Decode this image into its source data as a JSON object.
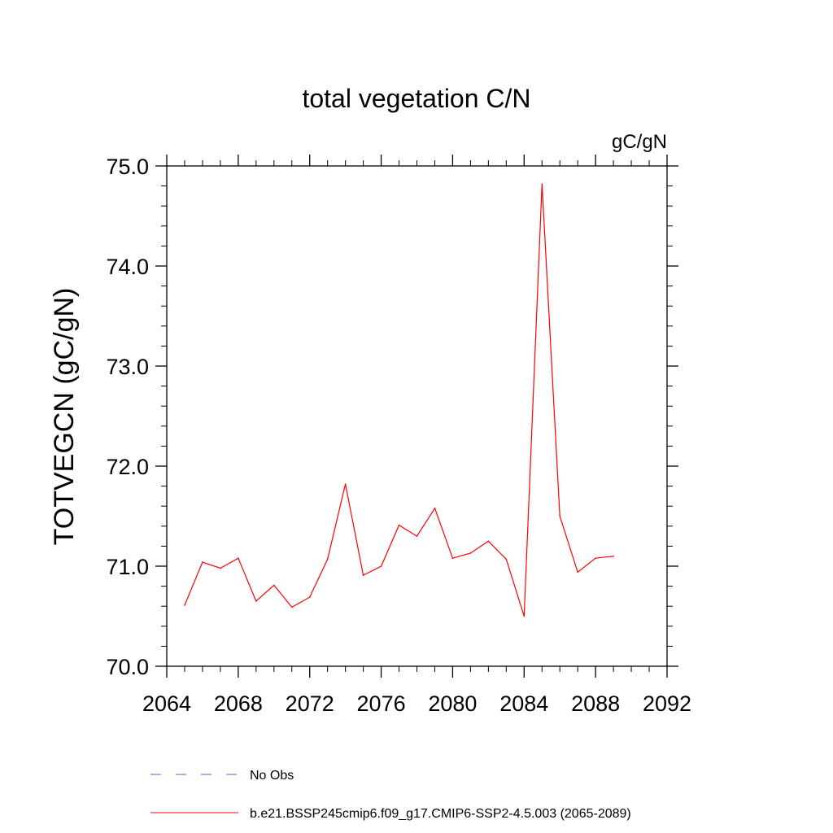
{
  "chart_data": {
    "type": "line",
    "title": "total vegetation C/N",
    "units": "gC/gN",
    "ylabel": "TOTVEGCN  (gC/gN)",
    "xlabel": "",
    "xlim": [
      2064,
      2092
    ],
    "ylim": [
      70.0,
      75.0
    ],
    "x_major_ticks": [
      2064,
      2068,
      2072,
      2076,
      2080,
      2084,
      2088,
      2092
    ],
    "x_tick_labels": [
      "2064",
      "2068",
      "2072",
      "2076",
      "2080",
      "2084",
      "2088",
      "2092"
    ],
    "x_minor_step": 1,
    "y_major_ticks": [
      70.0,
      71.0,
      72.0,
      73.0,
      74.0,
      75.0
    ],
    "y_tick_labels": [
      "70.0",
      "71.0",
      "72.0",
      "73.0",
      "74.0",
      "75.0"
    ],
    "y_minor_step": 0.2,
    "grid": false,
    "legend_position": "bottom",
    "series": [
      {
        "name": "b.e21.BSSP245cmip6.f09_g17.CMIP6-SSP2-4.5.003 (2065-2089)",
        "color": "#ff0000",
        "dash": "solid",
        "x": [
          2065,
          2066,
          2067,
          2068,
          2069,
          2070,
          2071,
          2072,
          2073,
          2074,
          2075,
          2076,
          2077,
          2078,
          2079,
          2080,
          2081,
          2082,
          2083,
          2084,
          2085,
          2086,
          2087,
          2088,
          2089
        ],
        "values": [
          70.61,
          71.04,
          70.98,
          71.08,
          70.65,
          70.81,
          70.59,
          70.69,
          71.07,
          71.82,
          70.91,
          71.0,
          71.41,
          71.3,
          71.58,
          71.08,
          71.13,
          71.25,
          71.07,
          70.5,
          74.82,
          71.5,
          70.94,
          71.08,
          71.1
        ]
      }
    ],
    "legend": [
      {
        "label": "No Obs",
        "color": "#6a5acd",
        "dash": "dashed"
      },
      {
        "label": "b.e21.BSSP245cmip6.f09_g17.CMIP6-SSP2-4.5.003 (2065-2089)",
        "color": "#ff0000",
        "dash": "solid"
      }
    ]
  }
}
